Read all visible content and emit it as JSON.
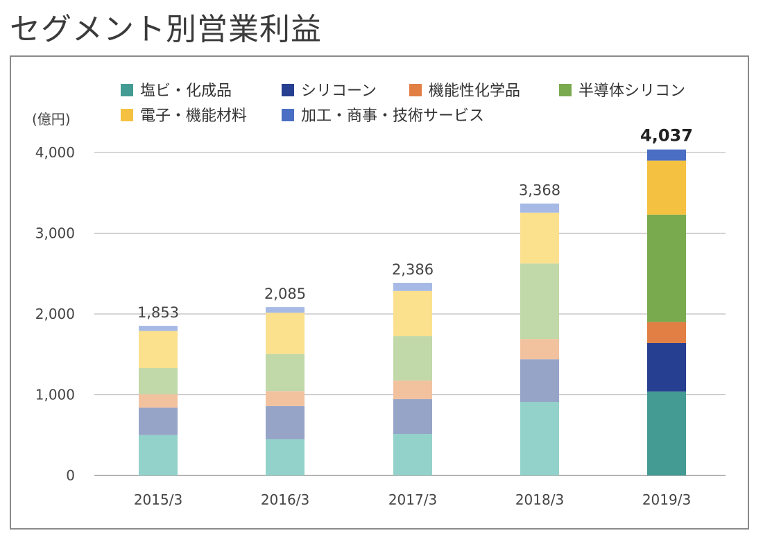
{
  "page": {
    "title": "セグメント別営業利益"
  },
  "chart_data": {
    "type": "bar",
    "stacked": true,
    "title": "",
    "ylabel": "(億円)",
    "xlabel": "",
    "ylim": [
      0,
      4000
    ],
    "yticks": [
      0,
      1000,
      2000,
      3000,
      4000
    ],
    "ytick_labels": [
      "0",
      "1,000",
      "2,000",
      "3,000",
      "4,000"
    ],
    "grid": true,
    "legend_position": "top",
    "categories": [
      "2015/3",
      "2016/3",
      "2017/3",
      "2018/3",
      "2019/3"
    ],
    "totals": [
      "1,853",
      "2,085",
      "2,386",
      "3,368",
      "4,037"
    ],
    "total_values": [
      1853,
      2085,
      2386,
      3368,
      4037
    ],
    "highlight_category": "2019/3",
    "series": [
      {
        "name": "塩ビ・化成品",
        "color": "#439b93",
        "faded_color": "#93d2cb",
        "values": [
          500,
          450,
          515,
          910,
          1040
        ]
      },
      {
        "name": "シリコーン",
        "color": "#263f90",
        "faded_color": "#96a4c8",
        "values": [
          340,
          410,
          430,
          530,
          600
        ]
      },
      {
        "name": "機能性化学品",
        "color": "#e17f44",
        "faded_color": "#f2c29f",
        "values": [
          165,
          185,
          230,
          250,
          260
        ]
      },
      {
        "name": "半導体シリコン",
        "color": "#7aaa4e",
        "faded_color": "#c1d8a8",
        "values": [
          325,
          460,
          550,
          935,
          1330
        ]
      },
      {
        "name": "電子・機能材料",
        "color": "#f5c140",
        "faded_color": "#fbe08d",
        "values": [
          460,
          510,
          560,
          630,
          670
        ]
      },
      {
        "name": "加工・商事・技術サービス",
        "color": "#4a6ec3",
        "faded_color": "#a7bae6",
        "values": [
          63,
          70,
          101,
          113,
          137
        ]
      }
    ]
  }
}
